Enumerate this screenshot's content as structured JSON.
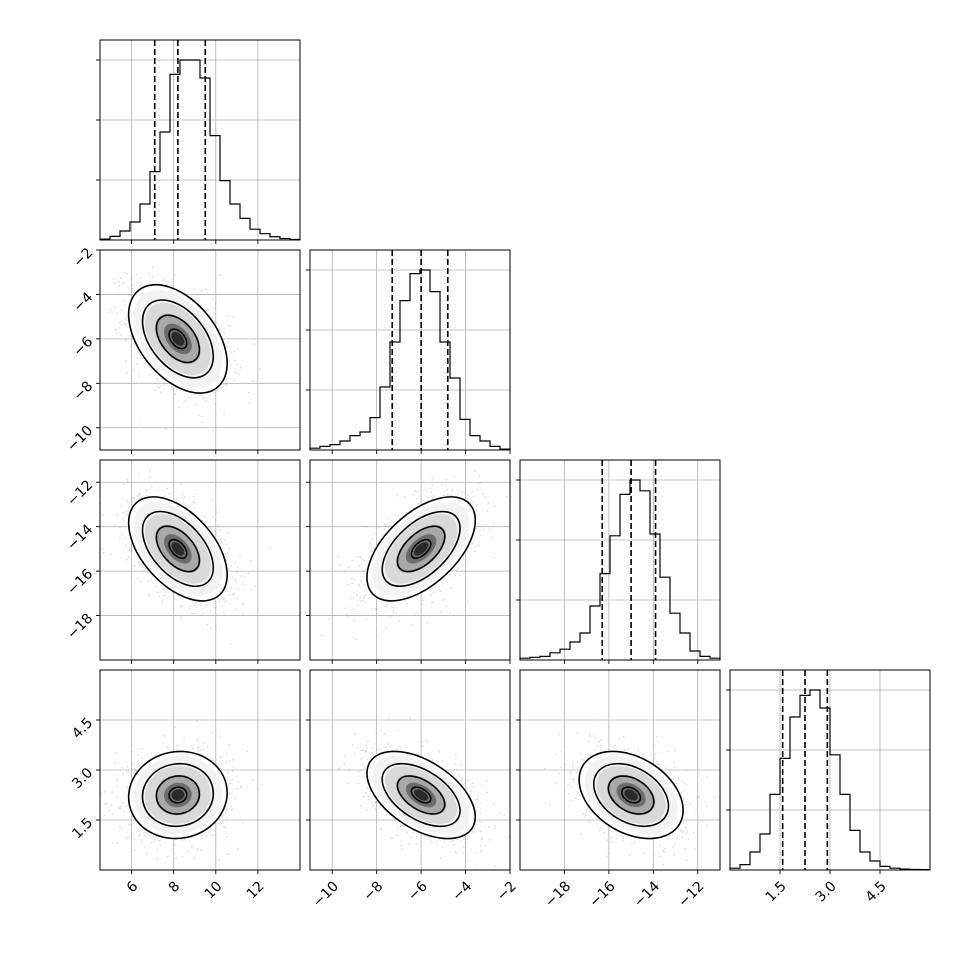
{
  "chart_data": {
    "type": "corner",
    "grid": true,
    "parameters": [
      {
        "range": [
          4.5,
          14
        ],
        "ticks": [
          6,
          8,
          10,
          12
        ],
        "tick_labels": [
          "6",
          "8",
          "10",
          "12"
        ],
        "median": 8.2,
        "q16": 7.1,
        "q84": 9.5,
        "hist_edges_start": 4.5,
        "hist_bin_width": 0.475,
        "hist_counts": [
          0.005,
          0.02,
          0.05,
          0.1,
          0.2,
          0.38,
          0.6,
          0.92,
          1.0,
          1.0,
          0.9,
          0.58,
          0.33,
          0.2,
          0.12,
          0.06,
          0.035,
          0.018,
          0.008,
          0.003
        ]
      },
      {
        "range": [
          -11,
          -2
        ],
        "ticks": [
          -10,
          -8,
          -6,
          -4,
          -2
        ],
        "tick_labels": [
          "−10",
          "−8",
          "−6",
          "−4",
          "−2"
        ],
        "median": -6.0,
        "q16": -7.3,
        "q84": -4.8,
        "hist_edges_start": -11,
        "hist_bin_width": 0.45,
        "hist_counts": [
          0.01,
          0.02,
          0.03,
          0.05,
          0.08,
          0.1,
          0.18,
          0.35,
          0.6,
          0.83,
          0.98,
          1.0,
          0.88,
          0.6,
          0.4,
          0.17,
          0.08,
          0.05,
          0.02,
          0.005
        ]
      },
      {
        "range": [
          -20,
          -11
        ],
        "ticks": [
          -18,
          -16,
          -14,
          -12
        ],
        "tick_labels": [
          "−18",
          "−16",
          "−14",
          "−12"
        ],
        "median": -15.0,
        "q16": -16.3,
        "q84": -13.9,
        "hist_edges_start": -20,
        "hist_bin_width": 0.45,
        "hist_counts": [
          0.01,
          0.015,
          0.02,
          0.04,
          0.06,
          0.1,
          0.15,
          0.3,
          0.48,
          0.69,
          0.92,
          1.0,
          0.94,
          0.7,
          0.46,
          0.26,
          0.15,
          0.05,
          0.02,
          0.01
        ]
      },
      {
        "range": [
          0,
          6
        ],
        "ticks": [
          1.5,
          3.0,
          4.5
        ],
        "tick_labels": [
          "1.5",
          "3.0",
          "4.5"
        ],
        "median": 2.25,
        "q16": 1.58,
        "q84": 2.92,
        "hist_edges_start": 0,
        "hist_bin_width": 0.3,
        "hist_counts": [
          0.01,
          0.03,
          0.1,
          0.2,
          0.42,
          0.62,
          0.85,
          0.97,
          1.0,
          0.9,
          0.64,
          0.42,
          0.22,
          0.1,
          0.05,
          0.02,
          0.01,
          0.005,
          0.003,
          0.002
        ]
      }
    ],
    "correlations": [
      [
        1.0,
        -0.45,
        -0.5,
        0.05
      ],
      [
        -0.45,
        1.0,
        0.55,
        -0.5
      ],
      [
        -0.5,
        0.55,
        1.0,
        -0.35
      ],
      [
        0.05,
        -0.5,
        -0.35,
        1.0
      ]
    ]
  }
}
